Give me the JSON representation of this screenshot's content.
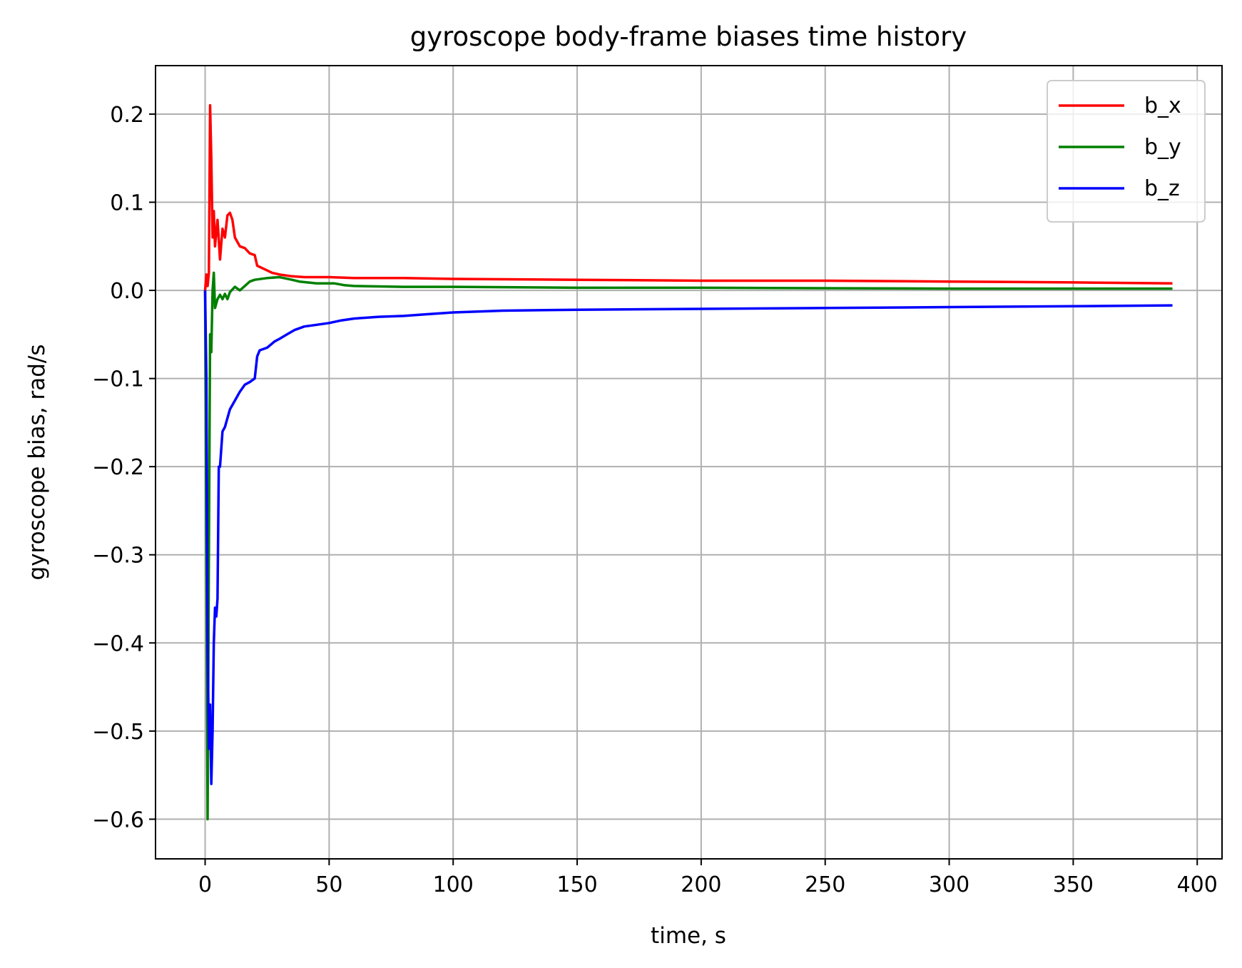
{
  "chart_data": {
    "type": "line",
    "title": "gyroscope body-frame biases time history",
    "xlabel": "time, s",
    "ylabel": "gyroscope bias, rad/s",
    "xlim": [
      -20,
      410
    ],
    "ylim": [
      -0.645,
      0.255
    ],
    "xticks": [
      0,
      50,
      100,
      150,
      200,
      250,
      300,
      350,
      400
    ],
    "yticks": [
      0.2,
      0.1,
      0.0,
      -0.1,
      -0.2,
      -0.3,
      -0.4,
      -0.5,
      -0.6
    ],
    "xtick_labels": [
      "0",
      "50",
      "100",
      "150",
      "200",
      "250",
      "300",
      "350",
      "400"
    ],
    "ytick_labels": [
      "0.2",
      "0.1",
      "0.0",
      "−0.1",
      "−0.2",
      "−0.3",
      "−0.4",
      "−0.5",
      "−0.6"
    ],
    "grid": true,
    "legend_position": "top-right",
    "series": [
      {
        "name": "b_x",
        "color": "#ff0000",
        "points": [
          [
            0,
            0.0
          ],
          [
            0.5,
            0.018
          ],
          [
            1,
            0.005
          ],
          [
            1.5,
            0.02
          ],
          [
            2,
            0.21
          ],
          [
            2.5,
            0.15
          ],
          [
            3,
            0.06
          ],
          [
            3.5,
            0.09
          ],
          [
            4,
            0.05
          ],
          [
            5,
            0.08
          ],
          [
            6,
            0.035
          ],
          [
            7,
            0.07
          ],
          [
            8,
            0.06
          ],
          [
            9,
            0.085
          ],
          [
            10,
            0.088
          ],
          [
            11,
            0.08
          ],
          [
            12,
            0.06
          ],
          [
            14,
            0.05
          ],
          [
            16,
            0.048
          ],
          [
            18,
            0.042
          ],
          [
            20,
            0.04
          ],
          [
            21,
            0.028
          ],
          [
            24,
            0.024
          ],
          [
            27,
            0.02
          ],
          [
            30,
            0.018
          ],
          [
            35,
            0.016
          ],
          [
            40,
            0.015
          ],
          [
            50,
            0.015
          ],
          [
            60,
            0.014
          ],
          [
            80,
            0.014
          ],
          [
            100,
            0.013
          ],
          [
            150,
            0.012
          ],
          [
            200,
            0.011
          ],
          [
            250,
            0.011
          ],
          [
            300,
            0.01
          ],
          [
            350,
            0.009
          ],
          [
            390,
            0.008
          ]
        ]
      },
      {
        "name": "b_y",
        "color": "#008000",
        "points": [
          [
            0,
            0.0
          ],
          [
            0.5,
            -0.3
          ],
          [
            1,
            -0.6
          ],
          [
            1.5,
            -0.3
          ],
          [
            2,
            -0.05
          ],
          [
            2.5,
            -0.07
          ],
          [
            3,
            0.0
          ],
          [
            3.5,
            0.02
          ],
          [
            4,
            -0.02
          ],
          [
            5,
            -0.01
          ],
          [
            6,
            -0.005
          ],
          [
            7,
            -0.01
          ],
          [
            8,
            -0.004
          ],
          [
            9,
            -0.01
          ],
          [
            10,
            -0.002
          ],
          [
            12,
            0.004
          ],
          [
            14,
            0.0
          ],
          [
            16,
            0.005
          ],
          [
            18,
            0.01
          ],
          [
            20,
            0.012
          ],
          [
            25,
            0.014
          ],
          [
            30,
            0.015
          ],
          [
            35,
            0.012
          ],
          [
            38,
            0.01
          ],
          [
            45,
            0.008
          ],
          [
            52,
            0.008
          ],
          [
            56,
            0.006
          ],
          [
            60,
            0.005
          ],
          [
            80,
            0.004
          ],
          [
            100,
            0.004
          ],
          [
            150,
            0.003
          ],
          [
            200,
            0.003
          ],
          [
            300,
            0.002
          ],
          [
            390,
            0.002
          ]
        ]
      },
      {
        "name": "b_z",
        "color": "#0000ff",
        "points": [
          [
            0,
            0.0
          ],
          [
            0.5,
            -0.1
          ],
          [
            1,
            -0.4
          ],
          [
            1.5,
            -0.52
          ],
          [
            2,
            -0.47
          ],
          [
            2.5,
            -0.56
          ],
          [
            3,
            -0.5
          ],
          [
            3.5,
            -0.4
          ],
          [
            4,
            -0.36
          ],
          [
            4.5,
            -0.37
          ],
          [
            5,
            -0.35
          ],
          [
            5.5,
            -0.2
          ],
          [
            6,
            -0.2
          ],
          [
            7,
            -0.16
          ],
          [
            8,
            -0.155
          ],
          [
            9,
            -0.145
          ],
          [
            10,
            -0.135
          ],
          [
            12,
            -0.125
          ],
          [
            14,
            -0.115
          ],
          [
            16,
            -0.107
          ],
          [
            18,
            -0.104
          ],
          [
            20,
            -0.1
          ],
          [
            21,
            -0.075
          ],
          [
            22,
            -0.068
          ],
          [
            25,
            -0.065
          ],
          [
            28,
            -0.058
          ],
          [
            30,
            -0.055
          ],
          [
            33,
            -0.05
          ],
          [
            36,
            -0.045
          ],
          [
            40,
            -0.041
          ],
          [
            45,
            -0.039
          ],
          [
            50,
            -0.037
          ],
          [
            55,
            -0.034
          ],
          [
            60,
            -0.032
          ],
          [
            70,
            -0.03
          ],
          [
            80,
            -0.029
          ],
          [
            90,
            -0.027
          ],
          [
            100,
            -0.025
          ],
          [
            120,
            -0.023
          ],
          [
            150,
            -0.022
          ],
          [
            200,
            -0.021
          ],
          [
            250,
            -0.02
          ],
          [
            300,
            -0.019
          ],
          [
            350,
            -0.018
          ],
          [
            390,
            -0.017
          ]
        ]
      }
    ]
  }
}
